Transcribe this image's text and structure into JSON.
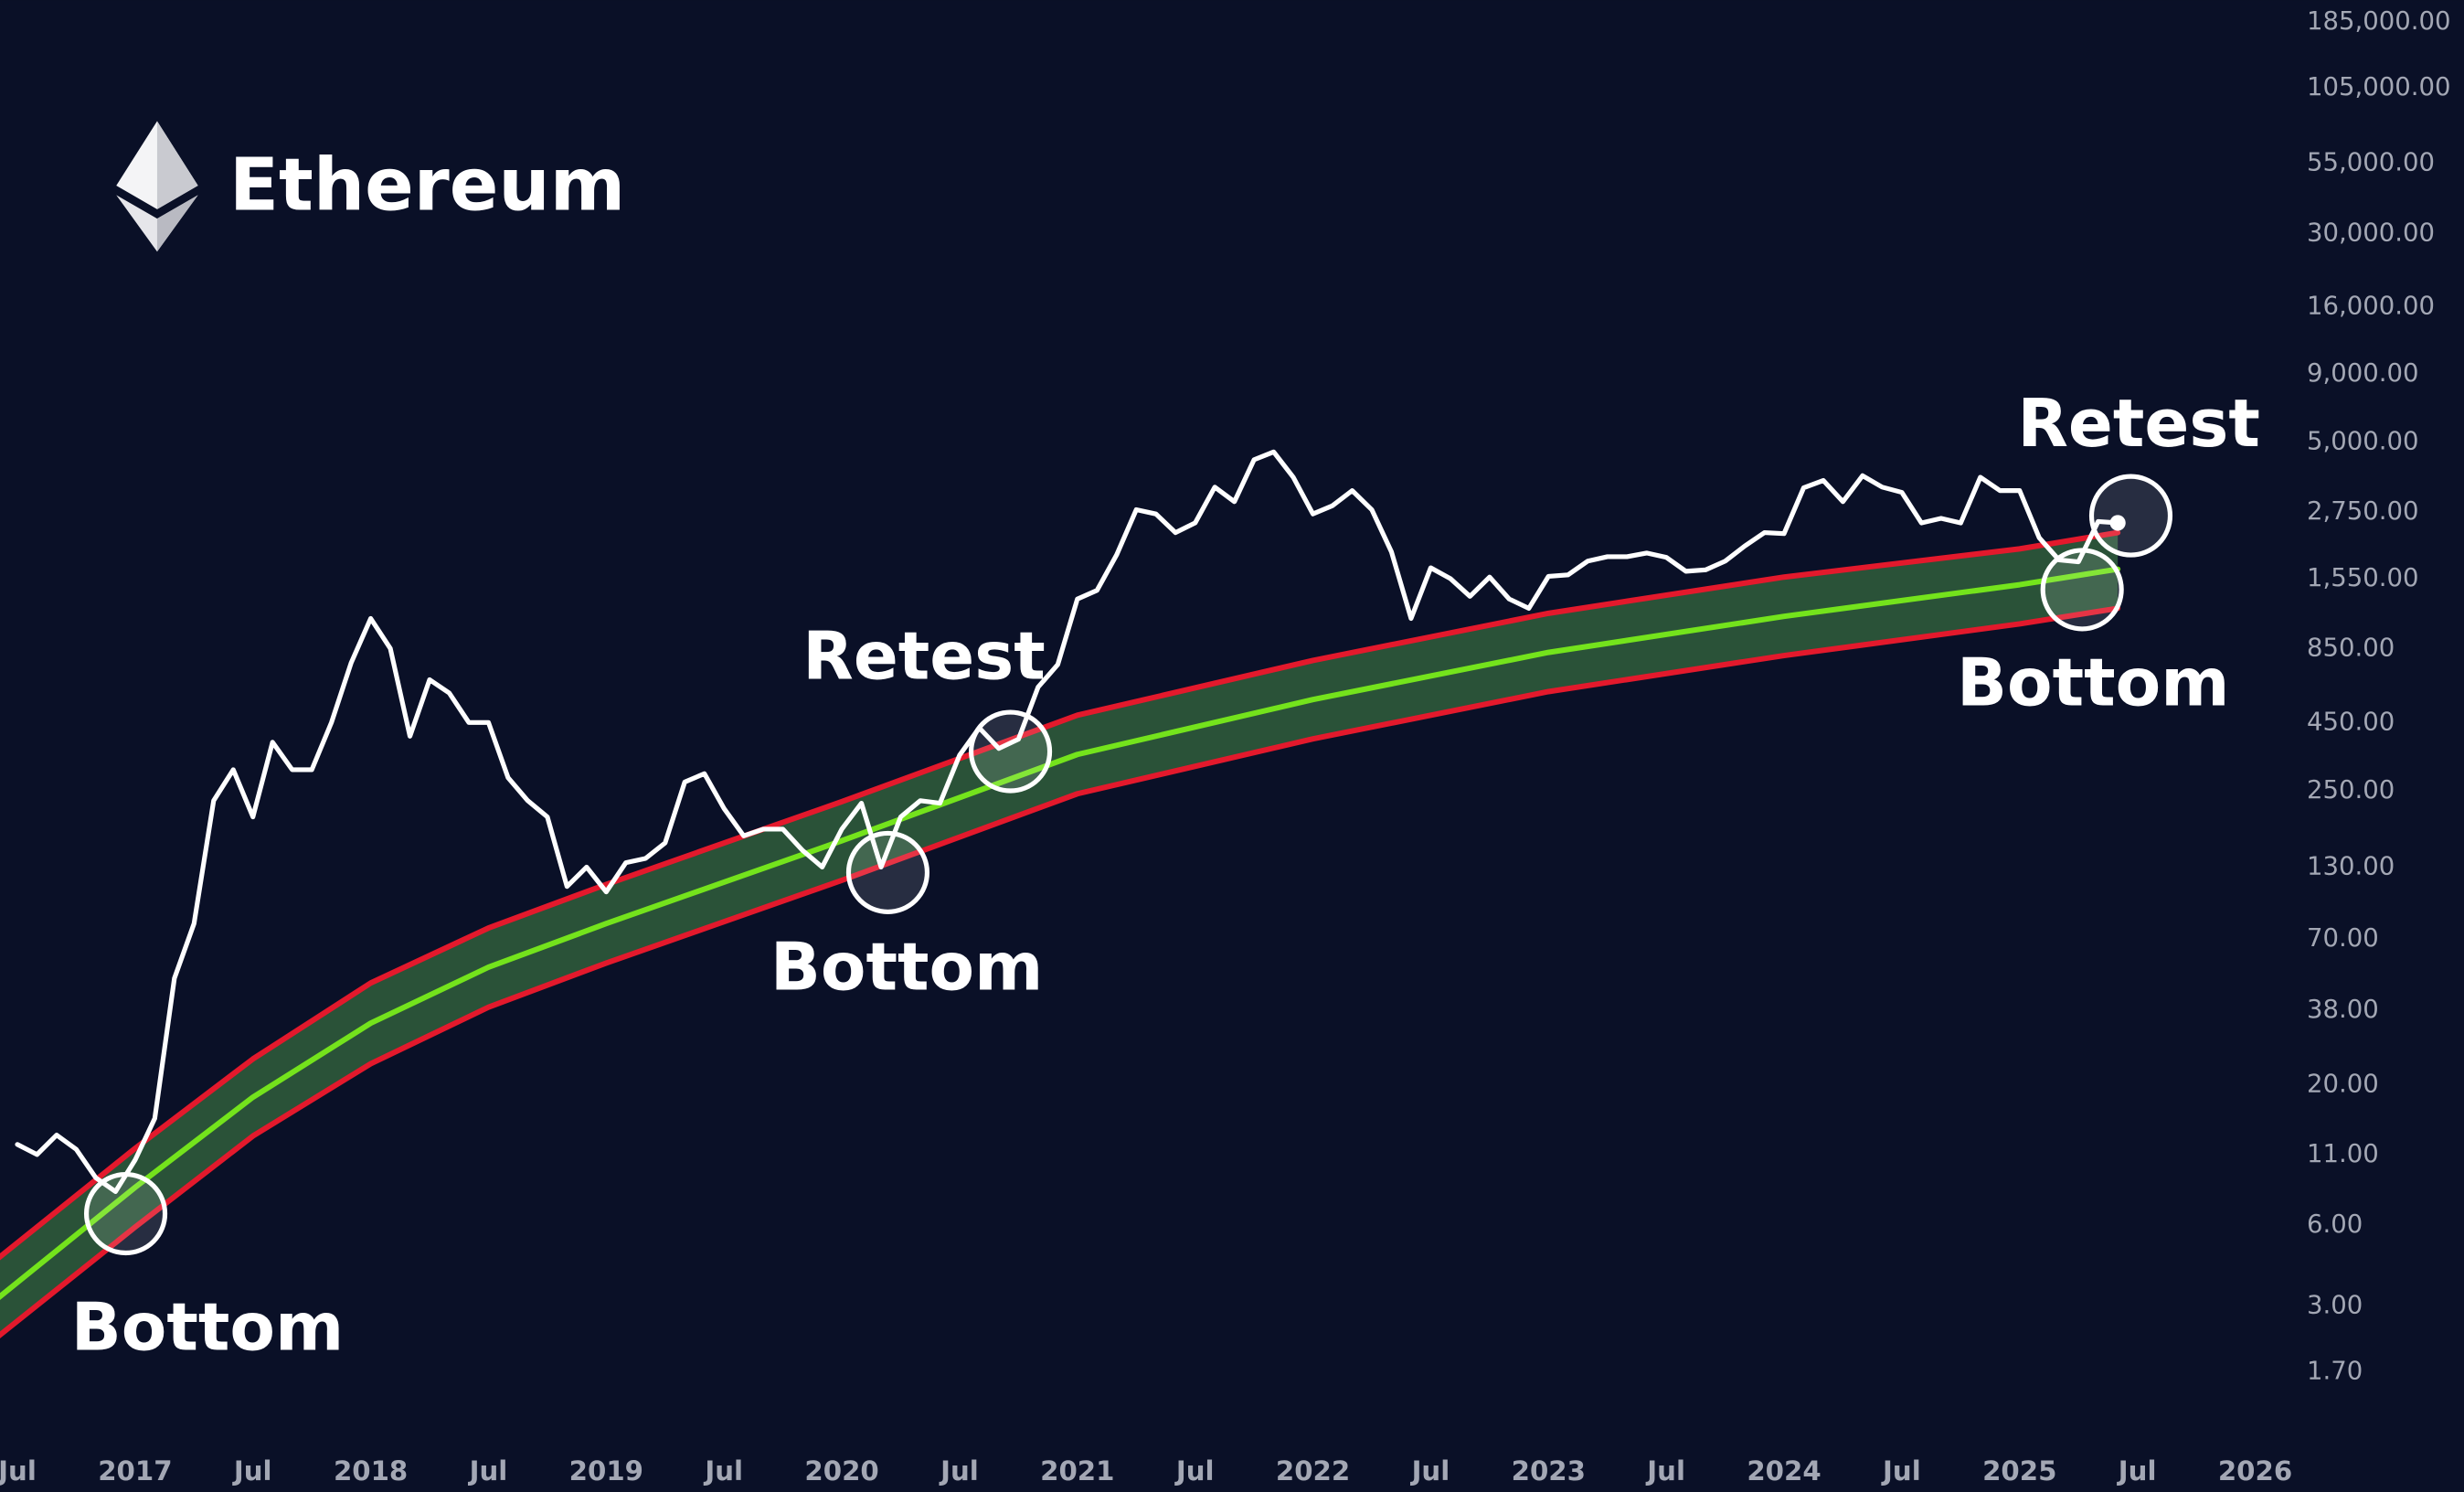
{
  "chart_data": {
    "type": "line",
    "title": "Ethereum",
    "log_scale": true,
    "ylim": [
      0.96,
      223000
    ],
    "yticks": [
      {
        "value": 185000,
        "label": "185,000.00"
      },
      {
        "value": 105000,
        "label": "105,000.00"
      },
      {
        "value": 55000,
        "label": "55,000.00"
      },
      {
        "value": 30000,
        "label": "30,000.00"
      },
      {
        "value": 16000,
        "label": "16,000.00"
      },
      {
        "value": 9000,
        "label": "9,000.00"
      },
      {
        "value": 5000,
        "label": "5,000.00"
      },
      {
        "value": 2750,
        "label": "2,750.00"
      },
      {
        "value": 1550,
        "label": "1,550.00"
      },
      {
        "value": 850,
        "label": "850.00"
      },
      {
        "value": 450,
        "label": "450.00"
      },
      {
        "value": 250,
        "label": "250.00"
      },
      {
        "value": 130,
        "label": "130.00"
      },
      {
        "value": 70,
        "label": "70.00"
      },
      {
        "value": 38,
        "label": "38.00"
      },
      {
        "value": 20,
        "label": "20.00"
      },
      {
        "value": 11,
        "label": "11.00"
      },
      {
        "value": 6,
        "label": "6.00"
      },
      {
        "value": 3,
        "label": "3.00"
      },
      {
        "value": 1.7,
        "label": "1.70"
      }
    ],
    "xticks": [
      {
        "value": "2016-07",
        "label": "Jul"
      },
      {
        "value": "2017-01",
        "label": "2017"
      },
      {
        "value": "2017-07",
        "label": "Jul"
      },
      {
        "value": "2018-01",
        "label": "2018"
      },
      {
        "value": "2018-07",
        "label": "Jul"
      },
      {
        "value": "2019-01",
        "label": "2019"
      },
      {
        "value": "2019-07",
        "label": "Jul"
      },
      {
        "value": "2020-01",
        "label": "2020"
      },
      {
        "value": "2020-07",
        "label": "Jul"
      },
      {
        "value": "2021-01",
        "label": "2021"
      },
      {
        "value": "2021-07",
        "label": "Jul"
      },
      {
        "value": "2022-01",
        "label": "2022"
      },
      {
        "value": "2022-07",
        "label": "Jul"
      },
      {
        "value": "2023-01",
        "label": "2023"
      },
      {
        "value": "2023-07",
        "label": "Jul"
      },
      {
        "value": "2024-01",
        "label": "2024"
      },
      {
        "value": "2024-07",
        "label": "Jul"
      },
      {
        "value": "2025-01",
        "label": "2025"
      },
      {
        "value": "2025-07",
        "label": "Jul"
      },
      {
        "value": "2026-01",
        "label": "2026"
      }
    ],
    "x": [
      "2016-07",
      "2016-08",
      "2016-09",
      "2016-10",
      "2016-11",
      "2016-12",
      "2017-01",
      "2017-02",
      "2017-03",
      "2017-04",
      "2017-05",
      "2017-06",
      "2017-07",
      "2017-08",
      "2017-09",
      "2017-10",
      "2017-11",
      "2017-12",
      "2018-01",
      "2018-02",
      "2018-03",
      "2018-04",
      "2018-05",
      "2018-06",
      "2018-07",
      "2018-08",
      "2018-09",
      "2018-10",
      "2018-11",
      "2018-12",
      "2019-01",
      "2019-02",
      "2019-03",
      "2019-04",
      "2019-05",
      "2019-06",
      "2019-07",
      "2019-08",
      "2019-09",
      "2019-10",
      "2019-11",
      "2019-12",
      "2020-01",
      "2020-02",
      "2020-03",
      "2020-04",
      "2020-05",
      "2020-06",
      "2020-07",
      "2020-08",
      "2020-09",
      "2020-10",
      "2020-11",
      "2020-12",
      "2021-01",
      "2021-02",
      "2021-03",
      "2021-04",
      "2021-05",
      "2021-06",
      "2021-07",
      "2021-08",
      "2021-09",
      "2021-10",
      "2021-11",
      "2021-12",
      "2022-01",
      "2022-02",
      "2022-03",
      "2022-04",
      "2022-05",
      "2022-06",
      "2022-07",
      "2022-08",
      "2022-09",
      "2022-10",
      "2022-11",
      "2022-12",
      "2023-01",
      "2023-02",
      "2023-03",
      "2023-04",
      "2023-05",
      "2023-06",
      "2023-07",
      "2023-08",
      "2023-09",
      "2023-10",
      "2023-11",
      "2023-12",
      "2024-01",
      "2024-02",
      "2024-03",
      "2024-04",
      "2024-05",
      "2024-06",
      "2024-07",
      "2024-08",
      "2024-09",
      "2024-10",
      "2024-11",
      "2024-12",
      "2025-01",
      "2025-02",
      "2025-03",
      "2025-04",
      "2025-05",
      "2025-06"
    ],
    "series": [
      {
        "color": "#ffffff",
        "values": [
          12,
          11,
          13,
          11.5,
          9,
          8,
          10.5,
          15,
          50,
          80,
          230,
          300,
          200,
          380,
          300,
          300,
          450,
          750,
          1100,
          850,
          400,
          650,
          580,
          450,
          450,
          280,
          230,
          200,
          110,
          130,
          105,
          135,
          140,
          160,
          270,
          290,
          215,
          170,
          180,
          180,
          150,
          130,
          180,
          225,
          130,
          200,
          230,
          225,
          340,
          430,
          360,
          390,
          610,
          740,
          1300,
          1400,
          1900,
          2800,
          2700,
          2300,
          2500,
          3400,
          3000,
          4300,
          4600,
          3700,
          2700,
          2900,
          3300,
          2800,
          1950,
          1100,
          1700,
          1550,
          1330,
          1570,
          1300,
          1200,
          1580,
          1600,
          1800,
          1870,
          1870,
          1930,
          1860,
          1650,
          1670,
          1800,
          2050,
          2300,
          2280,
          3380,
          3600,
          3000,
          3750,
          3400,
          3250,
          2500,
          2600,
          2500,
          3700,
          3300,
          3300,
          2200,
          1820,
          1790,
          2530,
          2500
        ]
      }
    ],
    "band": {
      "x": [
        "2016-06",
        "2017-01",
        "2017-07",
        "2018-01",
        "2018-07",
        "2019-01",
        "2020-01",
        "2021-01",
        "2022-01",
        "2023-01",
        "2024-01",
        "2025-01",
        "2025-06"
      ],
      "fill": "#2a5238",
      "series": [
        {
          "color": "#e3192c",
          "values": [
            4.5,
            11.6,
            25,
            48,
            77,
            112,
            228,
            479,
            767,
            1150,
            1570,
            2000,
            2300
          ]
        },
        {
          "color": "#74e31c",
          "values": [
            3.2,
            8.3,
            18,
            34,
            55,
            80,
            163,
            342,
            548,
            822,
            1120,
            1470,
            1680
          ]
        },
        {
          "color": "#e3192c",
          "values": [
            2.3,
            5.9,
            12.9,
            24,
            39,
            57,
            116,
            244,
            391,
            587,
            800,
            1050,
            1200
          ]
        }
      ]
    },
    "annotations": [
      "Bottom",
      "Bottom",
      "Retest",
      "Bottom",
      "Retest"
    ]
  }
}
